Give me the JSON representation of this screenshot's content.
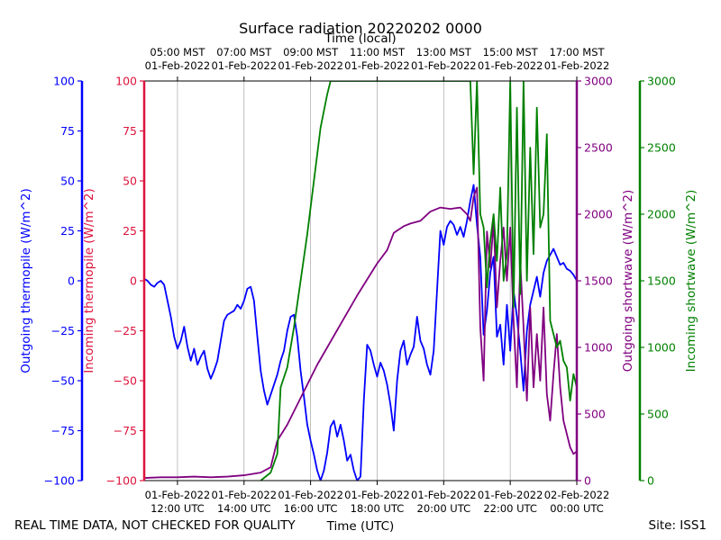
{
  "chart_data": {
    "type": "line",
    "title": "Surface radiation 20220202 0000",
    "top_axis_label": "Time (local)",
    "xlabel": "Time (UTC)",
    "footer_left": "REAL TIME DATA, NOT CHECKED FOR QUALITY",
    "footer_right": "Site: ISS1",
    "x_range_hours_utc": [
      11.0,
      24.0
    ],
    "x_ticks": [
      {
        "hour": 12,
        "utc_date": "01-Feb-2022",
        "utc_time": "12:00 UTC"
      },
      {
        "hour": 14,
        "utc_date": "01-Feb-2022",
        "utc_time": "14:00 UTC"
      },
      {
        "hour": 16,
        "utc_date": "01-Feb-2022",
        "utc_time": "16:00 UTC"
      },
      {
        "hour": 18,
        "utc_date": "01-Feb-2022",
        "utc_time": "18:00 UTC"
      },
      {
        "hour": 20,
        "utc_date": "01-Feb-2022",
        "utc_time": "20:00 UTC"
      },
      {
        "hour": 22,
        "utc_date": "01-Feb-2022",
        "utc_time": "22:00 UTC"
      },
      {
        "hour": 24,
        "utc_date": "02-Feb-2022",
        "utc_time": "00:00 UTC"
      }
    ],
    "top_ticks": [
      {
        "hour": 12,
        "local_time": "05:00 MST",
        "local_date": "01-Feb-2022"
      },
      {
        "hour": 14,
        "local_time": "07:00 MST",
        "local_date": "01-Feb-2022"
      },
      {
        "hour": 16,
        "local_time": "09:00 MST",
        "local_date": "01-Feb-2022"
      },
      {
        "hour": 18,
        "local_time": "11:00 MST",
        "local_date": "01-Feb-2022"
      },
      {
        "hour": 20,
        "local_time": "13:00 MST",
        "local_date": "01-Feb-2022"
      },
      {
        "hour": 22,
        "local_time": "15:00 MST",
        "local_date": "01-Feb-2022"
      },
      {
        "hour": 24,
        "local_time": "17:00 MST",
        "local_date": "01-Feb-2022"
      }
    ],
    "grid": "vertical",
    "axes": [
      {
        "id": "out_thermo",
        "label": "Outgoing thermopile (W/m^2)",
        "side": "left",
        "color": "#0000ff",
        "range": [
          -100,
          100
        ],
        "ticks": [
          -100,
          -75,
          -50,
          -25,
          0,
          25,
          50,
          75,
          100
        ]
      },
      {
        "id": "in_thermo",
        "label": "Incoming thermopile (W/m^2)",
        "side": "left",
        "color": "#dc143c",
        "range": [
          -100,
          100
        ],
        "ticks": [
          -100,
          -75,
          -50,
          -25,
          0,
          25,
          50,
          75,
          100
        ]
      },
      {
        "id": "out_sw",
        "label": "Outgoing shortwave (W/m^2)",
        "side": "right",
        "color": "#800080",
        "range": [
          0,
          3000
        ],
        "ticks": [
          0,
          500,
          1000,
          1500,
          2000,
          2500,
          3000
        ]
      },
      {
        "id": "in_sw",
        "label": "Incoming shortwave (W/m^2)",
        "side": "right",
        "color": "#008000",
        "range": [
          0,
          3000
        ],
        "ticks": [
          0,
          500,
          1000,
          1500,
          2000,
          2500,
          3000
        ]
      }
    ],
    "series": [
      {
        "id": "blue",
        "axis": "out_thermo",
        "color": "#0000ff",
        "points": [
          [
            11.0,
            1
          ],
          [
            11.1,
            0
          ],
          [
            11.2,
            -2
          ],
          [
            11.3,
            -3
          ],
          [
            11.4,
            -1
          ],
          [
            11.5,
            0
          ],
          [
            11.6,
            -2
          ],
          [
            11.7,
            -10
          ],
          [
            11.8,
            -18
          ],
          [
            11.9,
            -28
          ],
          [
            12.0,
            -34
          ],
          [
            12.1,
            -30
          ],
          [
            12.2,
            -23
          ],
          [
            12.3,
            -33
          ],
          [
            12.4,
            -40
          ],
          [
            12.5,
            -34
          ],
          [
            12.6,
            -42
          ],
          [
            12.7,
            -38
          ],
          [
            12.8,
            -35
          ],
          [
            12.9,
            -44
          ],
          [
            13.0,
            -49
          ],
          [
            13.1,
            -45
          ],
          [
            13.2,
            -40
          ],
          [
            13.3,
            -30
          ],
          [
            13.4,
            -20
          ],
          [
            13.5,
            -17
          ],
          [
            13.6,
            -16
          ],
          [
            13.7,
            -15
          ],
          [
            13.8,
            -12
          ],
          [
            13.9,
            -14
          ],
          [
            14.0,
            -10
          ],
          [
            14.1,
            -4
          ],
          [
            14.2,
            -3
          ],
          [
            14.3,
            -10
          ],
          [
            14.4,
            -28
          ],
          [
            14.5,
            -45
          ],
          [
            14.6,
            -55
          ],
          [
            14.7,
            -62
          ],
          [
            14.8,
            -57
          ],
          [
            14.9,
            -52
          ],
          [
            15.0,
            -47
          ],
          [
            15.1,
            -40
          ],
          [
            15.2,
            -35
          ],
          [
            15.3,
            -25
          ],
          [
            15.4,
            -18
          ],
          [
            15.5,
            -17
          ],
          [
            15.6,
            -28
          ],
          [
            15.7,
            -45
          ],
          [
            15.8,
            -58
          ],
          [
            15.9,
            -72
          ],
          [
            16.0,
            -80
          ],
          [
            16.1,
            -87
          ],
          [
            16.2,
            -95
          ],
          [
            16.3,
            -100
          ],
          [
            16.4,
            -95
          ],
          [
            16.5,
            -86
          ],
          [
            16.6,
            -73
          ],
          [
            16.7,
            -70
          ],
          [
            16.8,
            -78
          ],
          [
            16.9,
            -72
          ],
          [
            17.0,
            -80
          ],
          [
            17.1,
            -90
          ],
          [
            17.2,
            -87
          ],
          [
            17.3,
            -95
          ],
          [
            17.4,
            -100
          ],
          [
            17.5,
            -98
          ],
          [
            17.6,
            -60
          ],
          [
            17.7,
            -32
          ],
          [
            17.8,
            -35
          ],
          [
            17.9,
            -42
          ],
          [
            18.0,
            -48
          ],
          [
            18.1,
            -41
          ],
          [
            18.2,
            -45
          ],
          [
            18.3,
            -52
          ],
          [
            18.4,
            -62
          ],
          [
            18.5,
            -75
          ],
          [
            18.6,
            -50
          ],
          [
            18.7,
            -35
          ],
          [
            18.8,
            -30
          ],
          [
            18.9,
            -42
          ],
          [
            19.0,
            -37
          ],
          [
            19.1,
            -33
          ],
          [
            19.2,
            -18
          ],
          [
            19.3,
            -30
          ],
          [
            19.4,
            -34
          ],
          [
            19.5,
            -42
          ],
          [
            19.6,
            -47
          ],
          [
            19.7,
            -35
          ],
          [
            19.8,
            -5
          ],
          [
            19.9,
            25
          ],
          [
            20.0,
            18
          ],
          [
            20.1,
            27
          ],
          [
            20.2,
            30
          ],
          [
            20.3,
            28
          ],
          [
            20.4,
            23
          ],
          [
            20.5,
            27
          ],
          [
            20.6,
            22
          ],
          [
            20.7,
            30
          ],
          [
            20.8,
            40
          ],
          [
            20.9,
            48
          ],
          [
            21.0,
            28
          ],
          [
            21.1,
            12
          ],
          [
            21.2,
            -27
          ],
          [
            21.3,
            -15
          ],
          [
            21.4,
            4
          ],
          [
            21.5,
            12
          ],
          [
            21.6,
            -28
          ],
          [
            21.7,
            -22
          ],
          [
            21.8,
            -42
          ],
          [
            21.9,
            -12
          ],
          [
            22.0,
            -35
          ],
          [
            22.1,
            -5
          ],
          [
            22.2,
            -18
          ],
          [
            22.3,
            -35
          ],
          [
            22.4,
            -55
          ],
          [
            22.5,
            -25
          ],
          [
            22.6,
            -12
          ],
          [
            22.7,
            -5
          ],
          [
            22.8,
            2
          ],
          [
            22.9,
            -8
          ],
          [
            23.0,
            4
          ],
          [
            23.1,
            10
          ],
          [
            23.2,
            13
          ],
          [
            23.3,
            16
          ],
          [
            23.4,
            12
          ],
          [
            23.5,
            8
          ],
          [
            23.6,
            9
          ],
          [
            23.7,
            6
          ],
          [
            23.8,
            5
          ],
          [
            23.9,
            3
          ],
          [
            24.0,
            0
          ]
        ]
      },
      {
        "id": "purple",
        "axis": "out_sw",
        "color": "#800080",
        "points": [
          [
            11.0,
            20
          ],
          [
            11.5,
            25
          ],
          [
            12.0,
            25
          ],
          [
            12.5,
            30
          ],
          [
            13.0,
            25
          ],
          [
            13.5,
            30
          ],
          [
            14.0,
            40
          ],
          [
            14.5,
            60
          ],
          [
            14.8,
            100
          ],
          [
            15.0,
            300
          ],
          [
            15.3,
            420
          ],
          [
            15.6,
            570
          ],
          [
            15.9,
            720
          ],
          [
            16.2,
            870
          ],
          [
            16.5,
            1000
          ],
          [
            16.8,
            1130
          ],
          [
            17.1,
            1260
          ],
          [
            17.4,
            1390
          ],
          [
            17.7,
            1510
          ],
          [
            18.0,
            1630
          ],
          [
            18.3,
            1730
          ],
          [
            18.5,
            1860
          ],
          [
            18.8,
            1910
          ],
          [
            19.0,
            1930
          ],
          [
            19.3,
            1950
          ],
          [
            19.6,
            2020
          ],
          [
            19.9,
            2050
          ],
          [
            20.2,
            2040
          ],
          [
            20.5,
            2050
          ],
          [
            20.7,
            2000
          ],
          [
            20.8,
            1950
          ],
          [
            20.9,
            2130
          ],
          [
            21.0,
            2200
          ],
          [
            21.1,
            1150
          ],
          [
            21.2,
            750
          ],
          [
            21.3,
            1870
          ],
          [
            21.4,
            1600
          ],
          [
            21.5,
            1950
          ],
          [
            21.6,
            1300
          ],
          [
            21.7,
            1650
          ],
          [
            21.8,
            1900
          ],
          [
            21.9,
            1500
          ],
          [
            22.0,
            1900
          ],
          [
            22.1,
            1200
          ],
          [
            22.2,
            700
          ],
          [
            22.3,
            1650
          ],
          [
            22.4,
            1150
          ],
          [
            22.5,
            600
          ],
          [
            22.6,
            1300
          ],
          [
            22.7,
            700
          ],
          [
            22.8,
            1100
          ],
          [
            22.9,
            750
          ],
          [
            23.0,
            1300
          ],
          [
            23.1,
            650
          ],
          [
            23.2,
            450
          ],
          [
            23.3,
            800
          ],
          [
            23.4,
            1100
          ],
          [
            23.5,
            700
          ],
          [
            23.6,
            450
          ],
          [
            23.7,
            350
          ],
          [
            23.8,
            250
          ],
          [
            23.9,
            200
          ],
          [
            24.0,
            220
          ]
        ]
      },
      {
        "id": "green",
        "axis": "in_sw",
        "color": "#008000",
        "points": [
          [
            14.5,
            0
          ],
          [
            14.8,
            60
          ],
          [
            15.0,
            200
          ],
          [
            15.1,
            700
          ],
          [
            15.3,
            850
          ],
          [
            15.5,
            1150
          ],
          [
            15.7,
            1500
          ],
          [
            15.9,
            1850
          ],
          [
            16.1,
            2250
          ],
          [
            16.3,
            2650
          ],
          [
            16.5,
            2900
          ],
          [
            16.6,
            3000
          ],
          [
            20.8,
            3000
          ],
          [
            20.9,
            2300
          ],
          [
            21.0,
            3000
          ],
          [
            21.1,
            2000
          ],
          [
            21.2,
            1900
          ],
          [
            21.3,
            1450
          ],
          [
            21.4,
            1800
          ],
          [
            21.5,
            2000
          ],
          [
            21.6,
            1650
          ],
          [
            21.7,
            2200
          ],
          [
            21.8,
            1500
          ],
          [
            21.9,
            1700
          ],
          [
            22.0,
            3000
          ],
          [
            22.1,
            1300
          ],
          [
            22.2,
            2800
          ],
          [
            22.3,
            1400
          ],
          [
            22.4,
            3000
          ],
          [
            22.5,
            1500
          ],
          [
            22.6,
            2500
          ],
          [
            22.7,
            1700
          ],
          [
            22.8,
            2800
          ],
          [
            22.9,
            1900
          ],
          [
            23.0,
            2000
          ],
          [
            23.1,
            2600
          ],
          [
            23.2,
            1200
          ],
          [
            23.3,
            1100
          ],
          [
            23.4,
            1000
          ],
          [
            23.5,
            1050
          ],
          [
            23.6,
            900
          ],
          [
            23.7,
            850
          ],
          [
            23.8,
            600
          ],
          [
            23.9,
            800
          ],
          [
            24.0,
            700
          ]
        ]
      }
    ]
  }
}
